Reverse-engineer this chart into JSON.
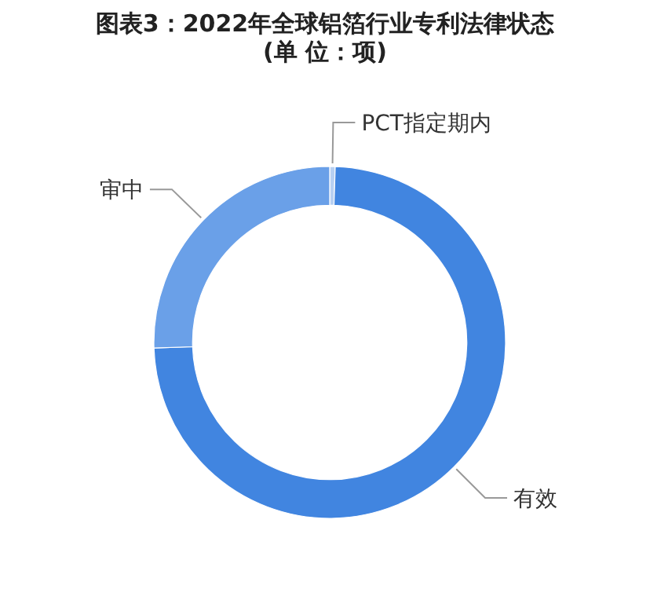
{
  "chart_data": {
    "type": "donut",
    "title": "图表3：2022年全球铝箔行业专利法律状态(单 位：项)",
    "categories": [
      "PCT指定期内",
      "有效",
      "审中"
    ],
    "values": [
      0.5,
      74.0,
      25.5
    ],
    "colors": [
      "#b8d0f2",
      "#4185e0",
      "#6aa0e8"
    ]
  }
}
